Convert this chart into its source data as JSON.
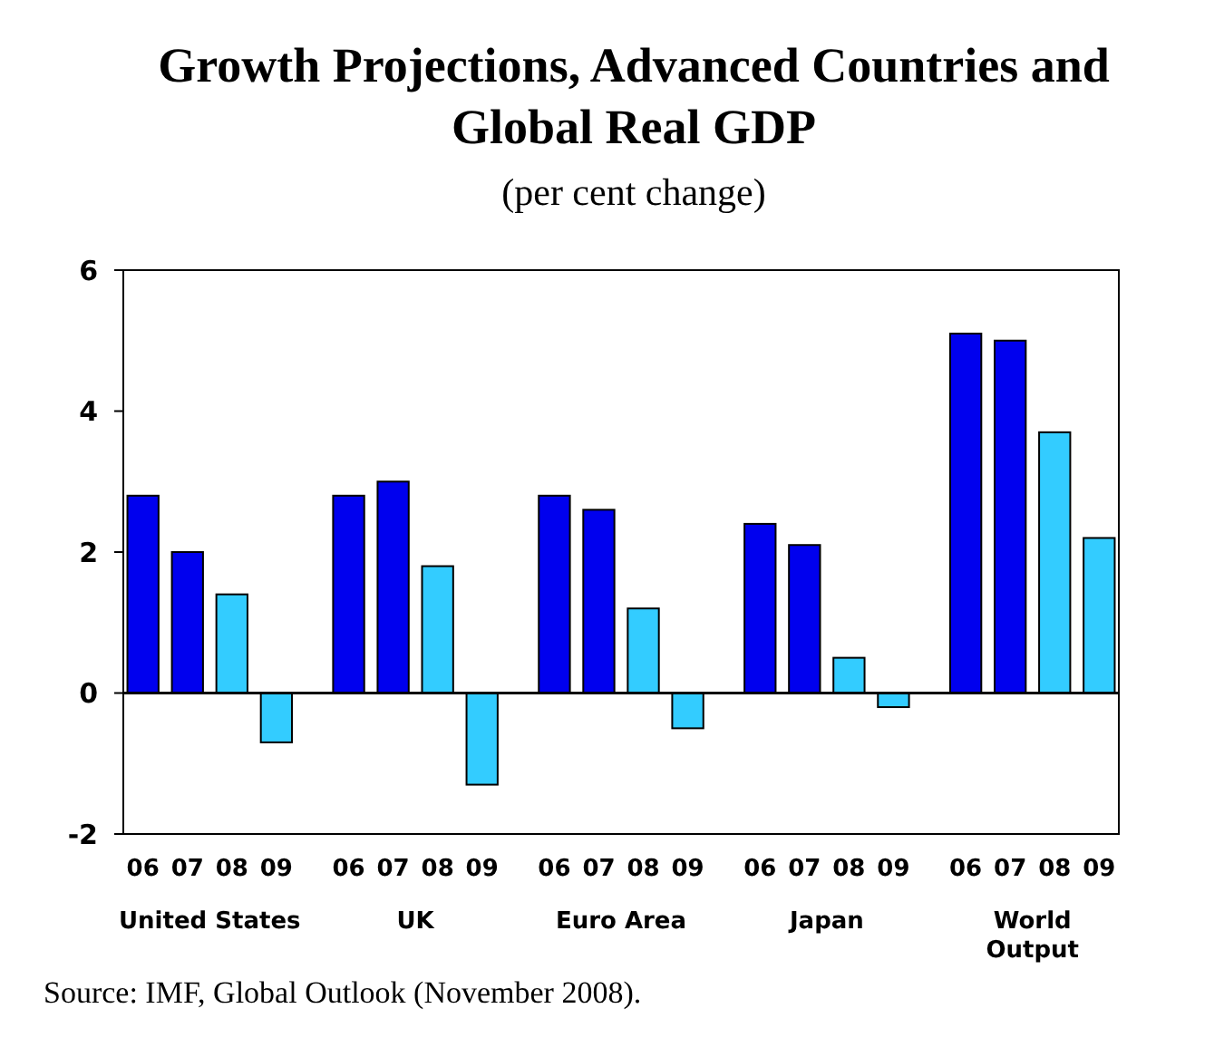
{
  "chart_data": {
    "type": "bar",
    "title": "Growth Projections, Advanced Countries and Global Real GDP",
    "subtitle": "(per cent change)",
    "categories": [
      "United States",
      "UK",
      "Euro Area",
      "Japan",
      "World Output"
    ],
    "series": [
      {
        "name": "06",
        "color": "#0000ee",
        "values": [
          2.8,
          2.8,
          2.8,
          2.4,
          5.1
        ]
      },
      {
        "name": "07",
        "color": "#0000ee",
        "values": [
          2.0,
          3.0,
          2.6,
          2.1,
          5.0
        ]
      },
      {
        "name": "08",
        "color": "#33ccff",
        "values": [
          1.4,
          1.8,
          1.2,
          0.5,
          3.7
        ]
      },
      {
        "name": "09",
        "color": "#33ccff",
        "values": [
          -0.7,
          -1.3,
          -0.5,
          -0.2,
          2.2
        ]
      }
    ],
    "ylim": [
      -2,
      6
    ],
    "yticks": [
      -2,
      0,
      2,
      4,
      6
    ],
    "annotations": [
      "Source: IMF, Global Outlook (November 2008)."
    ]
  }
}
